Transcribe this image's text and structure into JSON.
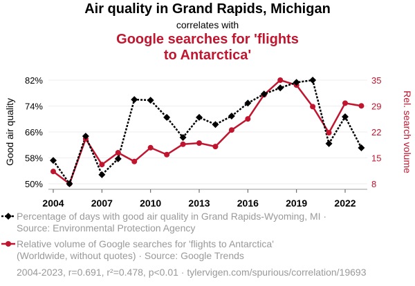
{
  "chart_data": {
    "type": "line",
    "title": "Air quality in Grand Rapids, Michigan",
    "subtitle": "correlates with",
    "title2_lines": [
      "Google searches for 'flights",
      "to Antarctica'"
    ],
    "x": [
      2004,
      2005,
      2006,
      2007,
      2008,
      2009,
      2010,
      2011,
      2012,
      2013,
      2014,
      2015,
      2016,
      2017,
      2018,
      2019,
      2020,
      2021,
      2022,
      2023
    ],
    "xticks": [
      "2004",
      "2007",
      "2010",
      "2013",
      "2016",
      "2019",
      "2022"
    ],
    "ylabel": "Good air quality",
    "ylabel_right": "Rel. search volume",
    "ylim": [
      50,
      82
    ],
    "ylim_right": [
      8,
      35
    ],
    "yticks": [
      "50%",
      "58%",
      "66%",
      "74%",
      "82%"
    ],
    "yticks_right": [
      "8",
      "15",
      "22",
      "29",
      "35"
    ],
    "grid": true,
    "series": [
      {
        "name": "Percentage of days with good air quality in Grand Rapids-Wyoming, MI",
        "color": "#000000",
        "axis": "left",
        "values": [
          57.2,
          50,
          64.7,
          52.8,
          57.7,
          76,
          75.8,
          70.5,
          64.3,
          70.5,
          68.3,
          70.9,
          74.9,
          77.7,
          79.6,
          81.3,
          82,
          62.4,
          70.7,
          61.1
        ]
      },
      {
        "name": "Relative volume of Google searches for 'flights to Antarctica'",
        "color": "#c0152f",
        "axis": "right",
        "values": [
          11.2,
          8,
          19.7,
          13,
          16.1,
          13.8,
          17.4,
          15.6,
          18.3,
          18.6,
          17.7,
          22,
          24.9,
          31.2,
          35,
          33.7,
          28.1,
          21.3,
          29,
          28.3
        ]
      }
    ],
    "legend": [
      {
        "line1": "Percentage of days with good air quality in Grand Rapids-Wyoming, MI ·",
        "line2": "Source: Environmental Protection Agency"
      },
      {
        "line1": "Relative volume of Google searches for 'flights to Antarctica'",
        "line2": "(Worldwide, without quotes) · Source: Google Trends"
      }
    ],
    "footer": "2004-2023, r=0.691, r²=0.478, p<0.01 · tylervigen.com/spurious/correlation/19693"
  }
}
